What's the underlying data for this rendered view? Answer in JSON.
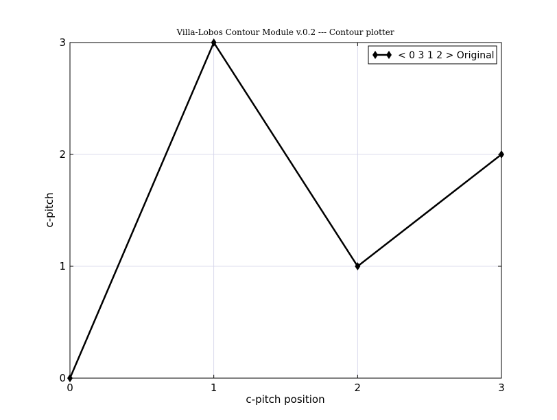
{
  "chart_data": {
    "type": "line",
    "title": "Villa-Lobos Contour Module v.0.2 --- Contour plotter",
    "xlabel": "c-pitch position",
    "ylabel": "c-pitch",
    "xlim": [
      0,
      3
    ],
    "ylim": [
      0,
      3
    ],
    "x_ticks": [
      "0",
      "1",
      "2",
      "3"
    ],
    "y_ticks": [
      "0",
      "1",
      "2",
      "3"
    ],
    "grid": true,
    "legend_position": "top-right",
    "series": [
      {
        "name": "< 0 3 1 2 > Original",
        "x": [
          0,
          1,
          2,
          3
        ],
        "values": [
          0,
          3,
          1,
          2
        ],
        "color": "#000000",
        "marker": "diamond"
      }
    ]
  }
}
